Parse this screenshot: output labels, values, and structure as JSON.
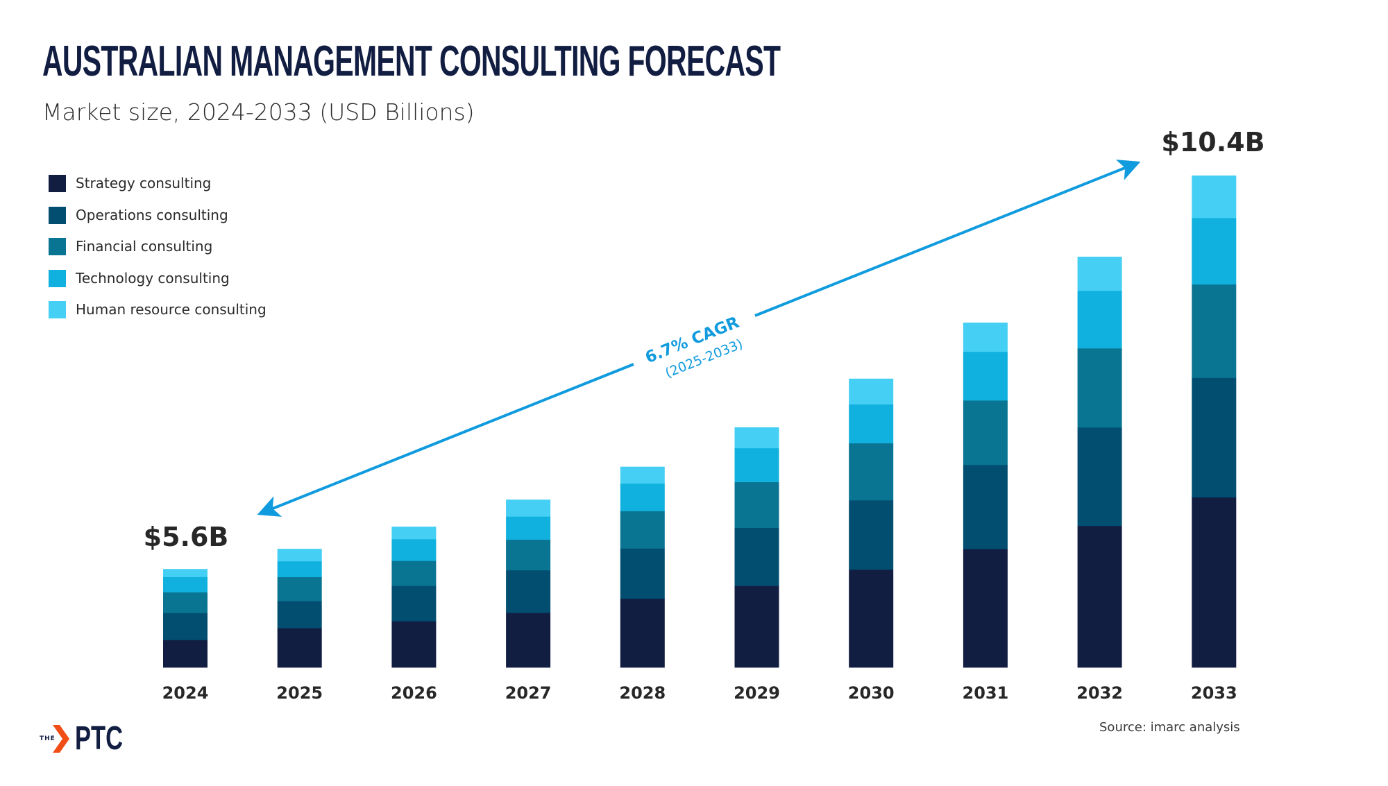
{
  "header": {
    "title": "AUSTRALIAN MANAGEMENT CONSULTING FORECAST",
    "subtitle": "Market size, 2024-2033 (USD Billions)"
  },
  "chart_data": {
    "type": "bar",
    "stacked": true,
    "title": "AUSTRALIAN MANAGEMENT CONSULTING FORECAST",
    "subtitle": "Market size, 2024-2033 (USD Billions)",
    "xlabel": "",
    "ylabel": "",
    "value_unit": "relative index (2033 total = 100); bars are illustrative, only 2024 and 2033 totals are labeled",
    "grid": false,
    "legend_position": "top-left",
    "categories": [
      "2024",
      "2025",
      "2026",
      "2027",
      "2028",
      "2029",
      "2030",
      "2031",
      "2032",
      "2033"
    ],
    "series": [
      {
        "name": "Strategy consulting",
        "color": "#121D42",
        "values": [
          5.6,
          8.0,
          9.4,
          11.1,
          14.0,
          16.6,
          19.9,
          24.1,
          28.8,
          34.6
        ]
      },
      {
        "name": "Operations consulting",
        "color": "#014E71",
        "values": [
          5.5,
          5.5,
          7.2,
          8.7,
          10.2,
          11.8,
          14.1,
          17.1,
          20.0,
          24.3
        ]
      },
      {
        "name": "Financial consulting",
        "color": "#0A7592",
        "values": [
          4.2,
          4.9,
          5.1,
          6.2,
          7.6,
          9.3,
          11.6,
          13.1,
          16.1,
          19.0
        ]
      },
      {
        "name": "Technology consulting",
        "color": "#10B1DE",
        "values": [
          3.1,
          3.2,
          4.4,
          4.7,
          5.6,
          6.9,
          7.9,
          9.9,
          11.7,
          13.5
        ]
      },
      {
        "name": "Human resource consulting",
        "color": "#45CFF4",
        "values": [
          1.6,
          2.5,
          2.5,
          3.4,
          3.4,
          4.2,
          5.2,
          5.9,
          6.9,
          8.6
        ]
      }
    ],
    "annotations": {
      "start_total": {
        "year": "2024",
        "label": "$5.6B",
        "value_usd_billions": 5.6
      },
      "end_total": {
        "year": "2033",
        "label": "$10.4B",
        "value_usd_billions": 10.4
      },
      "cagr": {
        "label": "6.7% CAGR",
        "period": "(2025-2033)",
        "color": "#109BDE"
      }
    }
  },
  "footer": {
    "source": "Source: imarc analysis",
    "logo_prefix": "THE",
    "logo_text": "PTC",
    "logo_icon": "chevron-right-icon",
    "logo_accent": "#F04E16"
  }
}
